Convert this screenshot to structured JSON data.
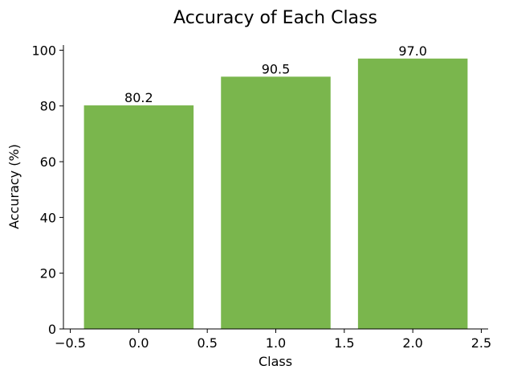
{
  "chart_data": {
    "type": "bar",
    "title": "Accuracy of Each Class",
    "xlabel": "Class",
    "ylabel": "Accuracy (%)",
    "x": [
      0.0,
      1.0,
      2.0
    ],
    "values": [
      80.2,
      90.5,
      97.0
    ],
    "data_labels": [
      "80.2",
      "90.5",
      "97.0"
    ],
    "bar_width": 0.8,
    "bar_color": "#7ab64d",
    "xlim": [
      -0.55,
      2.55
    ],
    "ylim": [
      0,
      101.85
    ],
    "x_ticks": [
      -0.5,
      0.0,
      0.5,
      1.0,
      1.5,
      2.0,
      2.5
    ],
    "x_tick_labels": [
      "−0.5",
      "0.0",
      "0.5",
      "1.0",
      "1.5",
      "2.0",
      "2.5"
    ],
    "y_ticks": [
      0,
      20,
      40,
      60,
      80,
      100
    ],
    "y_tick_labels": [
      "0",
      "20",
      "40",
      "60",
      "80",
      "100"
    ],
    "grid": false,
    "legend": "none",
    "spines": [
      "left",
      "bottom"
    ]
  }
}
